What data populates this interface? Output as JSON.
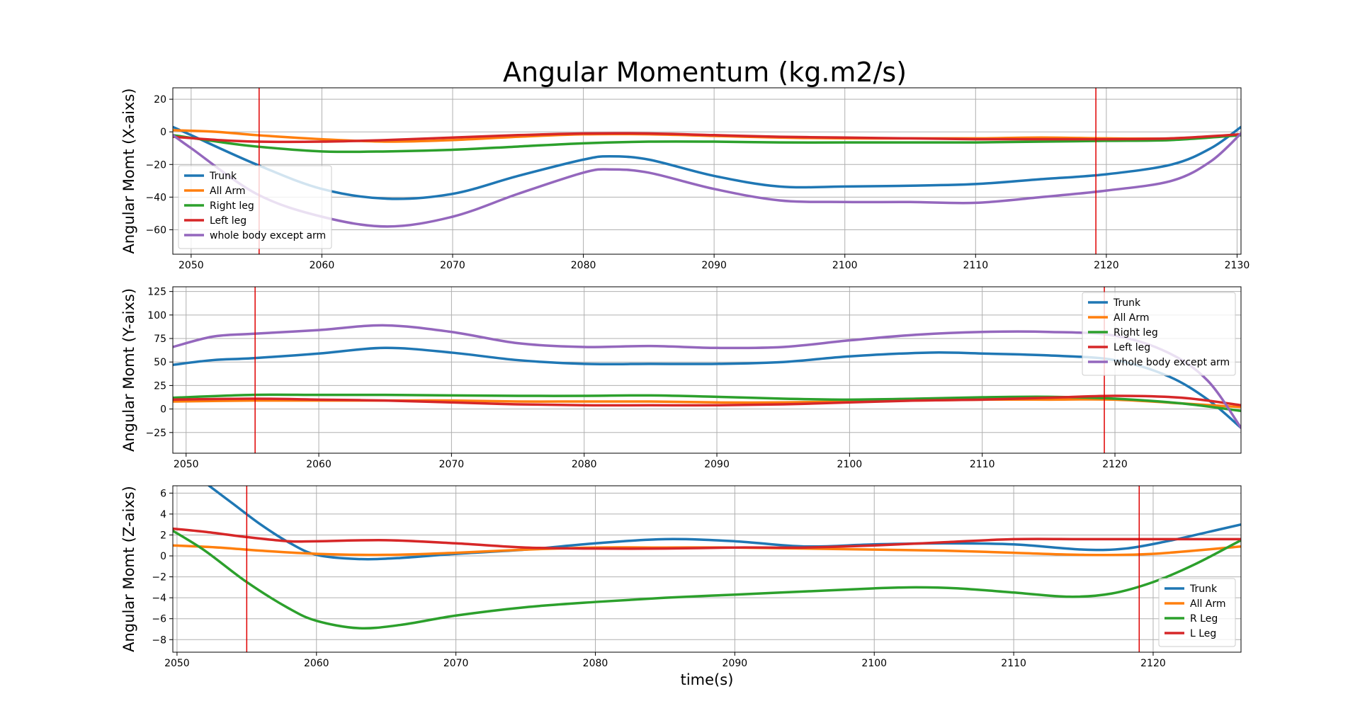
{
  "title": "Angular Momentum (kg.m2/s)",
  "colors": {
    "trunk": "#1f77b4",
    "arm": "#ff7f0e",
    "rleg": "#2ca02c",
    "lleg": "#d62728",
    "body": "#9467bd",
    "event": "#e00000",
    "grid": "#b0b0b0"
  },
  "chart_data": [
    {
      "type": "line",
      "ylabel": "Angular Momt (X-aixs)",
      "xlabel": "",
      "xlim": [
        2048.6,
        2130.3
      ],
      "ylim": [
        -75,
        27
      ],
      "xticks": [
        2050,
        2060,
        2070,
        2080,
        2090,
        2100,
        2110,
        2120,
        2130
      ],
      "yticks": [
        20,
        0,
        -20,
        -40,
        -60
      ],
      "grid": true,
      "legend_position": "lower-left",
      "event_lines": [
        2055.2,
        2119.2
      ],
      "series": [
        {
          "name": "Trunk",
          "color_key": "trunk",
          "x": [
            2048.6,
            2050,
            2055,
            2060,
            2065,
            2070,
            2075,
            2080,
            2082,
            2085,
            2090,
            2095,
            2100,
            2105,
            2110,
            2115,
            2120,
            2125,
            2128,
            2130.3
          ],
          "y": [
            3,
            -2,
            -20,
            -35,
            -41,
            -38,
            -27,
            -17,
            -15,
            -17,
            -27,
            -33.5,
            -33.5,
            -33,
            -32,
            -29,
            -26,
            -20,
            -10,
            3
          ]
        },
        {
          "name": "All Arm",
          "color_key": "arm",
          "x": [
            2048.6,
            2052,
            2055,
            2060,
            2065,
            2070,
            2075,
            2080,
            2085,
            2090,
            2095,
            2100,
            2105,
            2110,
            2115,
            2120,
            2125,
            2130.3
          ],
          "y": [
            1,
            0,
            -2,
            -4.5,
            -6,
            -5,
            -3,
            -1.5,
            -1.5,
            -2.5,
            -3.5,
            -4,
            -4,
            -4,
            -3.5,
            -4,
            -4,
            -2
          ]
        },
        {
          "name": "Right leg",
          "color_key": "rleg",
          "x": [
            2048.6,
            2052,
            2055,
            2060,
            2065,
            2070,
            2075,
            2080,
            2085,
            2090,
            2095,
            2100,
            2105,
            2110,
            2115,
            2120,
            2125,
            2130.3
          ],
          "y": [
            -2,
            -6,
            -9,
            -12,
            -12,
            -11,
            -9,
            -7,
            -6,
            -6,
            -6.5,
            -6.5,
            -6.5,
            -6.5,
            -6,
            -5.5,
            -5,
            -2
          ]
        },
        {
          "name": "Left leg",
          "color_key": "lleg",
          "x": [
            2048.6,
            2052,
            2055,
            2060,
            2065,
            2070,
            2075,
            2080,
            2085,
            2090,
            2095,
            2100,
            2105,
            2110,
            2115,
            2120,
            2125,
            2130.3
          ],
          "y": [
            -3,
            -5,
            -6,
            -6,
            -5,
            -3.5,
            -2,
            -1,
            -1,
            -2,
            -3,
            -3.5,
            -4,
            -4.5,
            -4.5,
            -4.5,
            -4,
            -1.5
          ]
        },
        {
          "name": "whole body except arm",
          "color_key": "body",
          "x": [
            2048.6,
            2050,
            2055,
            2060,
            2065,
            2070,
            2075,
            2080,
            2082,
            2085,
            2090,
            2095,
            2100,
            2105,
            2110,
            2115,
            2120,
            2125,
            2128,
            2130.3
          ],
          "y": [
            -2,
            -10,
            -38,
            -52,
            -58,
            -52,
            -38,
            -25,
            -23,
            -25,
            -35,
            -42,
            -43,
            -43,
            -43.5,
            -40,
            -36,
            -30,
            -18,
            -1
          ]
        }
      ]
    },
    {
      "type": "line",
      "ylabel": "Angular Momt (Y-aixs)",
      "xlabel": "",
      "xlim": [
        2049,
        2129.5
      ],
      "ylim": [
        -47,
        130
      ],
      "xticks": [
        2050,
        2060,
        2070,
        2080,
        2090,
        2100,
        2110,
        2120
      ],
      "yticks": [
        125,
        100,
        75,
        50,
        25,
        0,
        -25
      ],
      "grid": true,
      "legend_position": "upper-right",
      "event_lines": [
        2055.2,
        2119.2
      ],
      "series": [
        {
          "name": "Trunk",
          "color_key": "trunk",
          "x": [
            2049,
            2052,
            2055,
            2060,
            2065,
            2070,
            2075,
            2080,
            2085,
            2090,
            2095,
            2100,
            2106,
            2110,
            2115,
            2120,
            2124,
            2127,
            2129.5
          ],
          "y": [
            47,
            52,
            54,
            59,
            65,
            60,
            52,
            48,
            48,
            48,
            50,
            56,
            60,
            59,
            57,
            52,
            35,
            10,
            -20
          ]
        },
        {
          "name": "All Arm",
          "color_key": "arm",
          "x": [
            2049,
            2055,
            2060,
            2065,
            2070,
            2075,
            2080,
            2085,
            2090,
            2095,
            2100,
            2105,
            2110,
            2115,
            2120,
            2125,
            2129.5
          ],
          "y": [
            8,
            9,
            9,
            9,
            9,
            8,
            8,
            8,
            7,
            7,
            8,
            9,
            10,
            10,
            10,
            6,
            2
          ]
        },
        {
          "name": "Right leg",
          "color_key": "rleg",
          "x": [
            2049,
            2055,
            2060,
            2065,
            2070,
            2075,
            2080,
            2085,
            2090,
            2095,
            2100,
            2105,
            2110,
            2115,
            2120,
            2125,
            2129.5
          ],
          "y": [
            12,
            15,
            15,
            15,
            14.5,
            14,
            14,
            14.5,
            13,
            11,
            10,
            11,
            12.5,
            13,
            11,
            6,
            -2
          ]
        },
        {
          "name": "Left leg",
          "color_key": "lleg",
          "x": [
            2049,
            2055,
            2060,
            2065,
            2070,
            2075,
            2080,
            2085,
            2090,
            2095,
            2100,
            2105,
            2110,
            2115,
            2120,
            2125,
            2129.5
          ],
          "y": [
            10,
            11,
            10,
            9,
            7,
            5,
            4,
            4,
            4,
            5,
            7,
            9,
            10,
            12,
            14,
            12,
            4
          ]
        },
        {
          "name": "whole body except arm",
          "color_key": "body",
          "x": [
            2049,
            2052,
            2055,
            2060,
            2065,
            2070,
            2075,
            2080,
            2085,
            2090,
            2095,
            2100,
            2105,
            2110,
            2115,
            2120,
            2124,
            2127,
            2129.5
          ],
          "y": [
            66,
            77,
            80,
            84,
            89,
            82,
            70,
            66,
            67,
            65,
            66,
            73,
            79,
            82,
            82,
            78,
            60,
            30,
            -20
          ]
        }
      ]
    },
    {
      "type": "line",
      "ylabel": "Angular Momt (Z-aixs)",
      "xlabel": "time(s)",
      "xlim": [
        2049.7,
        2126.3
      ],
      "ylim": [
        -9.2,
        6.7
      ],
      "xticks": [
        2050,
        2060,
        2070,
        2080,
        2090,
        2100,
        2110,
        2120
      ],
      "yticks": [
        6,
        4,
        2,
        0,
        -2,
        -4,
        -6,
        -8
      ],
      "grid": true,
      "legend_position": "lower-right",
      "event_lines": [
        2055.0,
        2119.0
      ],
      "series": [
        {
          "name": "Trunk",
          "color_key": "trunk",
          "x": [
            2052.3,
            2054,
            2056,
            2058,
            2060,
            2063,
            2066,
            2070,
            2075,
            2080,
            2085,
            2090,
            2095,
            2100,
            2105,
            2110,
            2115,
            2118,
            2121,
            2124,
            2126.3
          ],
          "y": [
            6.7,
            5,
            3,
            1.3,
            0.1,
            -0.3,
            -0.2,
            0.2,
            0.6,
            1.2,
            1.6,
            1.4,
            0.9,
            1.1,
            1.2,
            1.1,
            0.6,
            0.7,
            1.4,
            2.3,
            3
          ]
        },
        {
          "name": "All Arm",
          "color_key": "arm",
          "x": [
            2049.7,
            2053,
            2056,
            2060,
            2065,
            2070,
            2075,
            2080,
            2085,
            2090,
            2095,
            2100,
            2105,
            2110,
            2115,
            2120,
            2126.3
          ],
          "y": [
            1,
            0.8,
            0.5,
            0.2,
            0.1,
            0.3,
            0.6,
            0.8,
            0.8,
            0.8,
            0.7,
            0.6,
            0.5,
            0.3,
            0.1,
            0.2,
            0.9
          ]
        },
        {
          "name": "R Leg",
          "color_key": "rleg",
          "x": [
            2049.7,
            2052,
            2055,
            2058,
            2060,
            2063,
            2066,
            2070,
            2075,
            2080,
            2085,
            2090,
            2095,
            2100,
            2103,
            2106,
            2110,
            2114,
            2117,
            2120,
            2123,
            2126.3
          ],
          "y": [
            2.4,
            0.5,
            -2.5,
            -5,
            -6.2,
            -6.9,
            -6.6,
            -5.7,
            -4.9,
            -4.4,
            -4,
            -3.7,
            -3.4,
            -3.1,
            -3,
            -3.1,
            -3.5,
            -3.9,
            -3.6,
            -2.5,
            -0.8,
            1.5
          ]
        },
        {
          "name": "L Leg",
          "color_key": "lleg",
          "x": [
            2049.7,
            2052,
            2055,
            2058,
            2060,
            2065,
            2070,
            2075,
            2080,
            2085,
            2090,
            2095,
            2100,
            2105,
            2110,
            2115,
            2120,
            2126.3
          ],
          "y": [
            2.6,
            2.3,
            1.8,
            1.4,
            1.4,
            1.5,
            1.2,
            0.8,
            0.7,
            0.7,
            0.8,
            0.8,
            1,
            1.3,
            1.6,
            1.6,
            1.6,
            1.6
          ]
        }
      ]
    }
  ]
}
